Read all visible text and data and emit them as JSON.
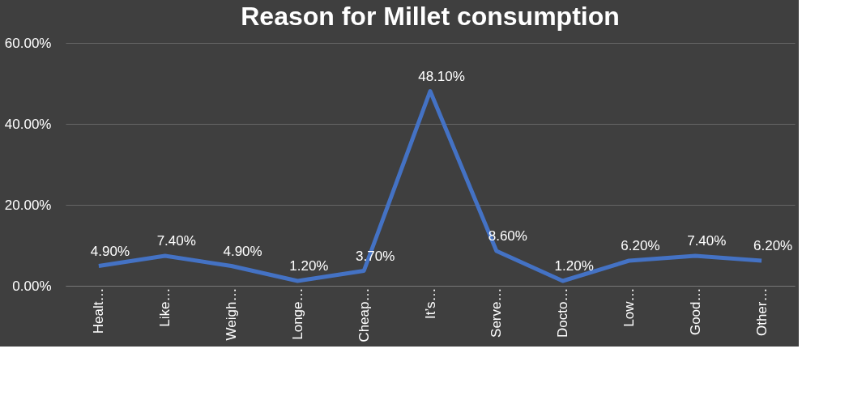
{
  "chart_data": {
    "type": "line",
    "title": "Reason for Millet consumption",
    "categories": [
      "Healt…",
      "Like…",
      "Weigh…",
      "Longe…",
      "Cheap…",
      "It’s…",
      "Serve…",
      "Docto…",
      "Low…",
      "Good…",
      "Other…"
    ],
    "series": [
      {
        "color": "#4472c4",
        "values": [
          4.9,
          7.4,
          4.9,
          1.2,
          3.7,
          48.1,
          8.6,
          1.2,
          6.2,
          7.4,
          6.2
        ],
        "value_labels": [
          "4.90%",
          "7.40%",
          "4.90%",
          "1.20%",
          "3.70%",
          "48.10%",
          "8.60%",
          "1.20%",
          "6.20%",
          "7.40%",
          "6.20%"
        ]
      }
    ],
    "ylim": [
      0,
      60
    ],
    "yticks": [
      {
        "value": 0,
        "label": "0.00%"
      },
      {
        "value": 20,
        "label": "20.00%"
      },
      {
        "value": 40,
        "label": "40.00%"
      },
      {
        "value": 60,
        "label": "60.00%"
      }
    ],
    "grid": "y",
    "marker": "none",
    "line_style": "solid"
  }
}
